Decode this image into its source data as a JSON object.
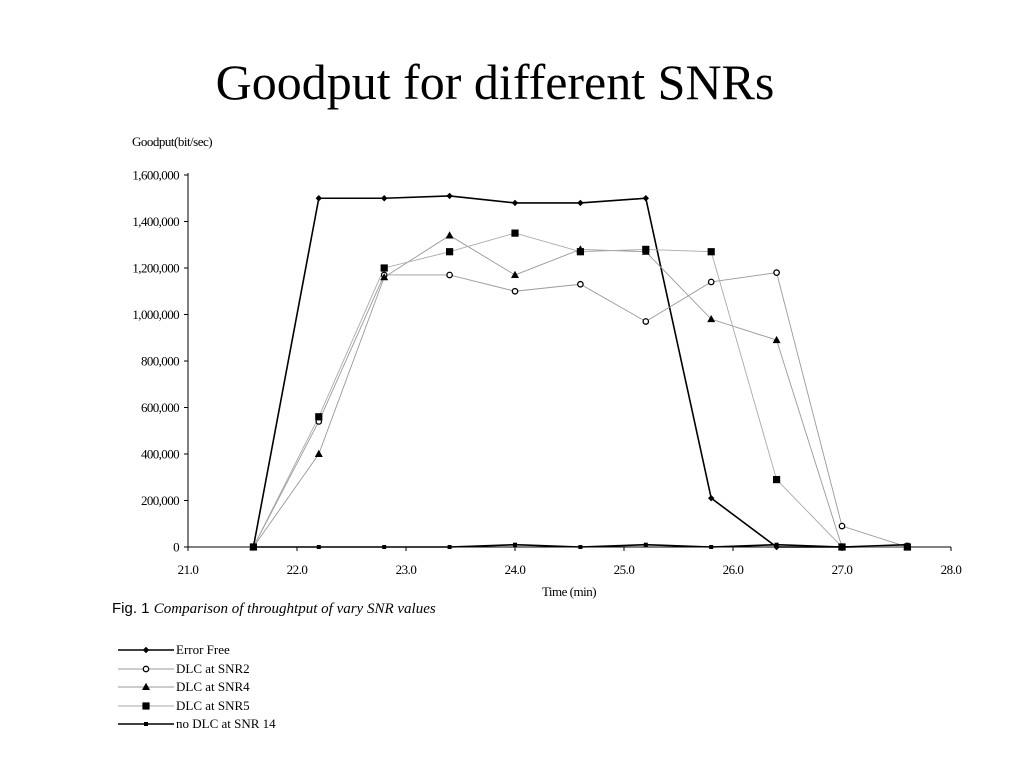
{
  "title": "Goodput for different SNRs",
  "caption": {
    "fig_label": "Fig. 1",
    "text": "Comparison of throughtput of vary SNR values"
  },
  "chart_data": {
    "type": "line",
    "title": "Goodput for different SNRs",
    "xlabel": "Time (min)",
    "ylabel": "Goodput(bit/sec)",
    "xlim": [
      21.0,
      28.0
    ],
    "ylim": [
      0,
      1600000
    ],
    "x_ticks": [
      "21.0",
      "22.0",
      "23.0",
      "24.0",
      "25.0",
      "26.0",
      "27.0",
      "28.0"
    ],
    "y_ticks": [
      "0",
      "200,000",
      "400,000",
      "600,000",
      "800,000",
      "1,000,000",
      "1,200,000",
      "1,400,000",
      "1,600,000"
    ],
    "grid": false,
    "legend_position": "bottom-left",
    "x": [
      21.6,
      22.2,
      22.8,
      23.4,
      24.0,
      24.6,
      25.2,
      25.8,
      26.4,
      27.0,
      27.6
    ],
    "series": [
      {
        "name": "Error Free",
        "marker": "diamond",
        "color": "#000000",
        "values": [
          0,
          1500000,
          1500000,
          1510000,
          1480000,
          1480000,
          1500000,
          210000,
          0,
          0,
          0
        ]
      },
      {
        "name": "DLC at SNR2",
        "marker": "circle-open",
        "color": "#999999",
        "values": [
          0,
          540000,
          1170000,
          1170000,
          1100000,
          1130000,
          970000,
          1140000,
          1180000,
          90000,
          0
        ]
      },
      {
        "name": "DLC at SNR4",
        "marker": "triangle",
        "color": "#999999",
        "values": [
          0,
          400000,
          1160000,
          1340000,
          1170000,
          1280000,
          1270000,
          980000,
          890000,
          0,
          0
        ]
      },
      {
        "name": "DLC at SNR5",
        "marker": "square",
        "color": "#aaaaaa",
        "values": [
          0,
          560000,
          1200000,
          1270000,
          1350000,
          1270000,
          1280000,
          1270000,
          290000,
          0,
          0
        ]
      },
      {
        "name": "no DLC at SNR 14",
        "marker": "small-square",
        "color": "#000000",
        "values": [
          0,
          0,
          0,
          0,
          10000,
          0,
          10000,
          0,
          10000,
          0,
          10000
        ]
      }
    ]
  }
}
